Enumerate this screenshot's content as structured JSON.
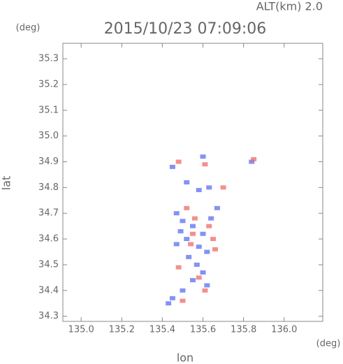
{
  "chart_data": {
    "type": "scatter",
    "title": "2015/10/23 07:09:06",
    "subtitle": "ALT(km) 2.0",
    "x_label": "lon",
    "y_label": "lat",
    "x_unit": "(deg)",
    "y_unit": "(deg)",
    "xlim": [
      134.91,
      136.19
    ],
    "ylim": [
      34.28,
      35.36
    ],
    "xticks": [
      {
        "value": 135,
        "label": "135.0"
      },
      135.2,
      135.4,
      135.6,
      135.8,
      {
        "value": 136,
        "label": "136.0"
      }
    ],
    "yticks": [
      34.3,
      34.4,
      34.5,
      34.6,
      34.7,
      34.8,
      34.9,
      {
        "value": 35,
        "label": "35.0"
      },
      35.1,
      35.2,
      35.3
    ],
    "grid": false,
    "series": [
      {
        "color": "#5a6ef0",
        "x": [
          135.45,
          135.6,
          135.52,
          135.63,
          135.58,
          135.47,
          135.5,
          135.55,
          135.6,
          135.52,
          135.47,
          135.58,
          135.62,
          135.53,
          135.57,
          135.6,
          135.55,
          135.62,
          135.5,
          135.45,
          135.43,
          135.64,
          135.84,
          135.67,
          135.49
        ],
        "values": [
          34.88,
          34.92,
          34.82,
          34.8,
          34.79,
          34.7,
          34.67,
          34.65,
          34.62,
          34.6,
          34.58,
          34.57,
          34.55,
          34.53,
          34.5,
          34.47,
          34.44,
          34.42,
          34.4,
          34.37,
          34.35,
          34.68,
          34.9,
          34.72,
          34.63
        ]
      },
      {
        "color": "#f06a6a",
        "x": [
          135.48,
          135.61,
          135.7,
          135.56,
          135.63,
          135.65,
          135.54,
          135.48,
          135.58,
          135.61,
          135.5,
          135.55,
          135.66,
          135.85,
          135.52
        ],
        "values": [
          34.9,
          34.89,
          34.8,
          34.68,
          34.65,
          34.6,
          34.58,
          34.49,
          34.45,
          34.4,
          34.36,
          34.62,
          34.56,
          34.91,
          34.72
        ]
      }
    ]
  }
}
